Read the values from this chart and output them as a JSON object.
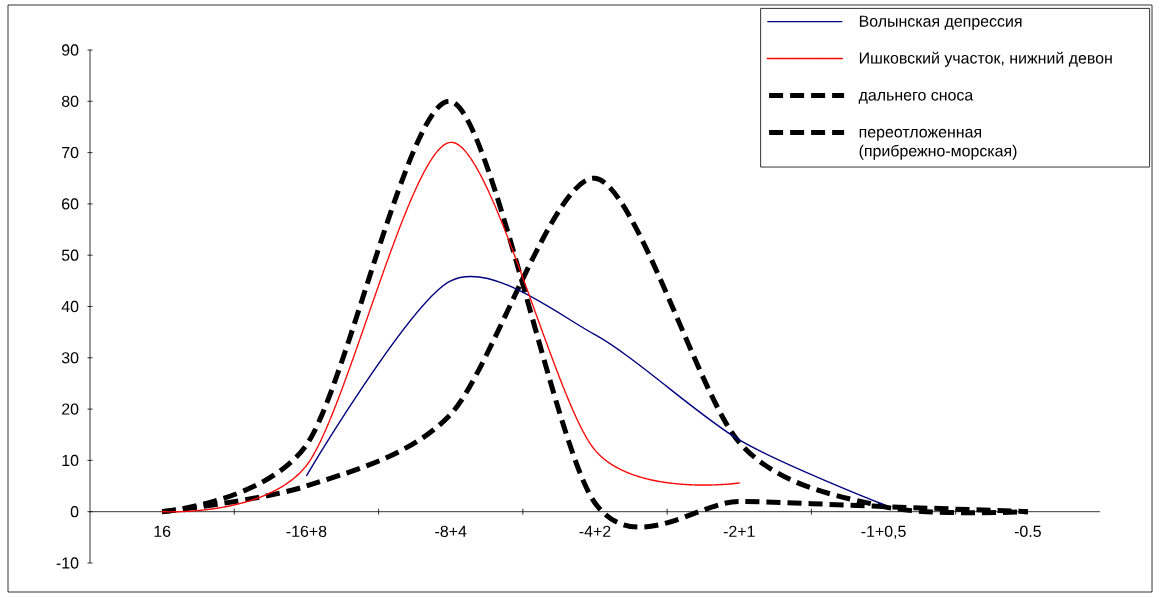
{
  "chart_data": {
    "type": "line",
    "categories": [
      "16",
      "-16+8",
      "-8+4",
      "-4+2",
      "-2+1",
      "-1+0,5",
      "-0.5"
    ],
    "series": [
      {
        "name": "Волынская депрессия",
        "color": "#000080",
        "line_style": "solid",
        "values": [
          null,
          7,
          45,
          34.5,
          14,
          1.4,
          null
        ]
      },
      {
        "name": "Ишковский участок, нижний девон",
        "color": "#ff0000",
        "line_style": "dotted",
        "values": [
          0,
          9,
          72,
          12,
          5.6,
          null,
          null
        ]
      },
      {
        "name": "дальнего сноса",
        "color": "#000000",
        "line_style": "dashed",
        "values": [
          0,
          13,
          80,
          1.7,
          2,
          1,
          0
        ]
      },
      {
        "name": "переотложенная (прибрежно-морская)",
        "color": "#000000",
        "line_style": "dashed",
        "values": [
          0,
          5,
          19,
          65,
          13.5,
          1,
          0
        ]
      }
    ],
    "ylim": [
      -10,
      90
    ],
    "yticks": [
      -10,
      0,
      10,
      20,
      30,
      40,
      50,
      60,
      70,
      80,
      90
    ],
    "grid": false,
    "legend": "top right",
    "marker": "none"
  }
}
